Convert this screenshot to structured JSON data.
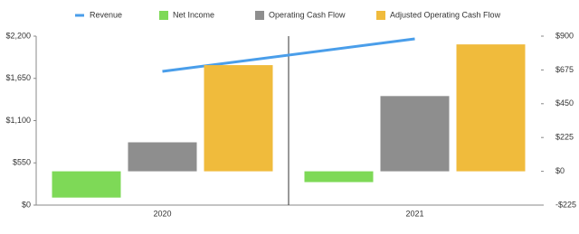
{
  "chart_data": {
    "type": "bar",
    "categories": [
      "2020",
      "2021"
    ],
    "series": [
      {
        "name": "Revenue",
        "type": "line",
        "color": "#4a9eea",
        "axis": "y",
        "values": [
          1741,
          2165
        ]
      },
      {
        "name": "Net Income",
        "color": "#7ed957",
        "axis": "y2",
        "values": [
          -175,
          -72
        ]
      },
      {
        "name": "Operating Cash Flow",
        "color": "#8e8e8e",
        "axis": "y2",
        "values": [
          193,
          501
        ]
      },
      {
        "name": "Adjusted Operating Cash Flow",
        "color": "#f0bb3c",
        "axis": "y2",
        "values": [
          707,
          845
        ]
      }
    ],
    "ylim": [
      0,
      2200
    ],
    "yticks": [
      {
        "value": 0,
        "label": "$0"
      },
      {
        "value": 550,
        "label": "$550"
      },
      {
        "value": 1100,
        "label": "$1,100"
      },
      {
        "value": 1650,
        "label": "$1,650"
      },
      {
        "value": 2200,
        "label": "$2,200"
      }
    ],
    "y2lim": [
      -225,
      900
    ],
    "y2ticks": [
      {
        "value": -225,
        "label": "-$225"
      },
      {
        "value": 0,
        "label": "$0"
      },
      {
        "value": 225,
        "label": "$225"
      },
      {
        "value": 450,
        "label": "$450"
      },
      {
        "value": 675,
        "label": "$675"
      },
      {
        "value": 900,
        "label": "$900"
      }
    ]
  }
}
